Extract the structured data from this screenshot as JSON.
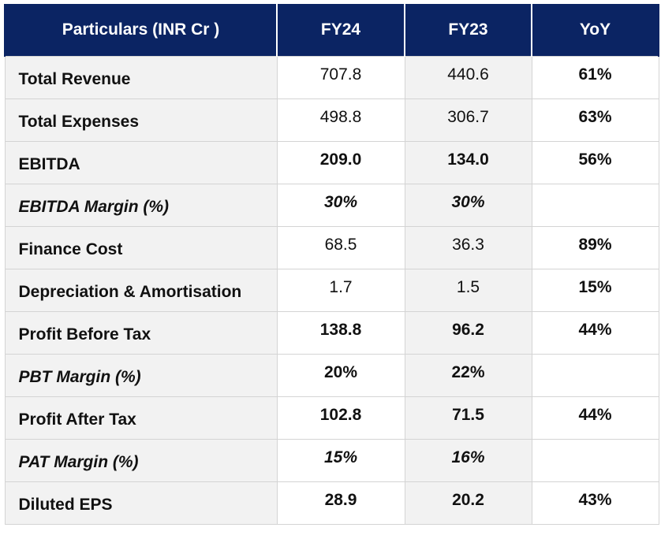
{
  "table": {
    "headers": [
      "Particulars (INR Cr )",
      "FY24",
      "FY23",
      "YoY"
    ],
    "rows": [
      {
        "label": "Total Revenue",
        "fy24": "707.8",
        "fy23": "440.6",
        "yoy": "61%"
      },
      {
        "label": "Total Expenses",
        "fy24": "498.8",
        "fy23": "306.7",
        "yoy": "63%"
      },
      {
        "label": "EBITDA",
        "fy24": "209.0",
        "fy23": "134.0",
        "yoy": "56%"
      },
      {
        "label": "EBITDA Margin (%)",
        "fy24": "30%",
        "fy23": "30%",
        "yoy": ""
      },
      {
        "label": "Finance Cost",
        "fy24": "68.5",
        "fy23": "36.3",
        "yoy": "89%"
      },
      {
        "label": "Depreciation & Amortisation",
        "fy24": "1.7",
        "fy23": "1.5",
        "yoy": "15%"
      },
      {
        "label": "Profit Before Tax",
        "fy24": "138.8",
        "fy23": "96.2",
        "yoy": "44%"
      },
      {
        "label": "PBT Margin (%)",
        "fy24": "20%",
        "fy23": "22%",
        "yoy": ""
      },
      {
        "label": "Profit After Tax",
        "fy24": "102.8",
        "fy23": "71.5",
        "yoy": "44%"
      },
      {
        "label": "PAT Margin (%)",
        "fy24": "15%",
        "fy23": "16%",
        "yoy": ""
      },
      {
        "label": "Diluted EPS",
        "fy24": "28.9",
        "fy23": "20.2",
        "yoy": "43%"
      }
    ]
  },
  "colors": {
    "header_bg": "#0b2463",
    "header_text": "#ffffff",
    "shaded_cell": "#f2f2f2",
    "border": "#d4d4d4"
  }
}
